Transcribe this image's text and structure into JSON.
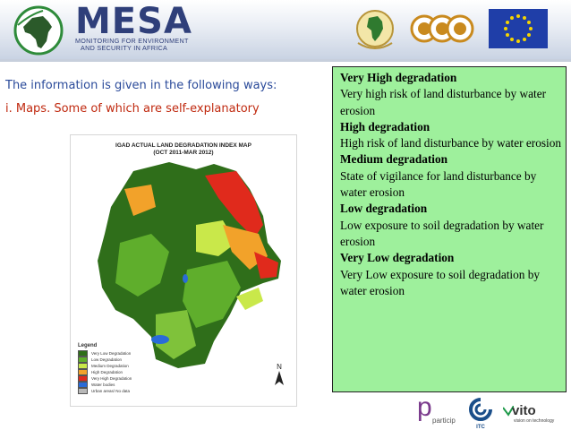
{
  "header": {
    "logo_name": "MESA",
    "logo_tagline_1": "Monitoring for Environment",
    "logo_tagline_2": "and Security in Africa",
    "partner_logos": [
      "au-emblem-icon",
      "acp-logo-icon",
      "eu-flag-icon"
    ]
  },
  "content": {
    "intro": "The information is given in the following ways:",
    "maps_line": "i.  Maps. Some of which are self-explanatory"
  },
  "map": {
    "title_line1": "IGAD ACTUAL LAND DEGRADATION INDEX MAP",
    "title_line2": "(OCT 2011-MAR 2012)",
    "legend_title": "Legend",
    "legend": [
      {
        "label": "Very Low Degradation",
        "color": "#2f6e1a"
      },
      {
        "label": "Low Degradation",
        "color": "#5fae2c"
      },
      {
        "label": "Medium Degradation",
        "color": "#c9e84a"
      },
      {
        "label": "High Degradation",
        "color": "#f2a22a"
      },
      {
        "label": "Very High Degradation",
        "color": "#e02a1c"
      },
      {
        "label": "Water bodies",
        "color": "#2a6bd8"
      },
      {
        "label": "Urban areas/ No data",
        "color": "#b8b8b8"
      }
    ],
    "north_label": "N"
  },
  "definitions": [
    {
      "title": "Very High degradation",
      "text": "Very high risk of land disturbance by water erosion"
    },
    {
      "title": "High degradation",
      "text": "High risk of land disturbance by water erosion"
    },
    {
      "title": "Medium degradation",
      "text": "State of vigilance for land disturbance by water erosion"
    },
    {
      "title": "Low degradation",
      "text": "Low exposure to soil degradation by water erosion"
    },
    {
      "title": "Very Low degradation",
      "text": "Very Low exposure to soil degradation by water erosion"
    }
  ],
  "footer": {
    "participp_letter": "p",
    "participp_text": "particip",
    "itc_text": "ITC",
    "vito_text": "vito",
    "vito_sub": "vision on technology"
  },
  "colors": {
    "definitions_bg": "#9ef09c",
    "intro_text": "#2a4a9a",
    "maps_text": "#c02a10",
    "logo_blue": "#2f3f7a"
  }
}
